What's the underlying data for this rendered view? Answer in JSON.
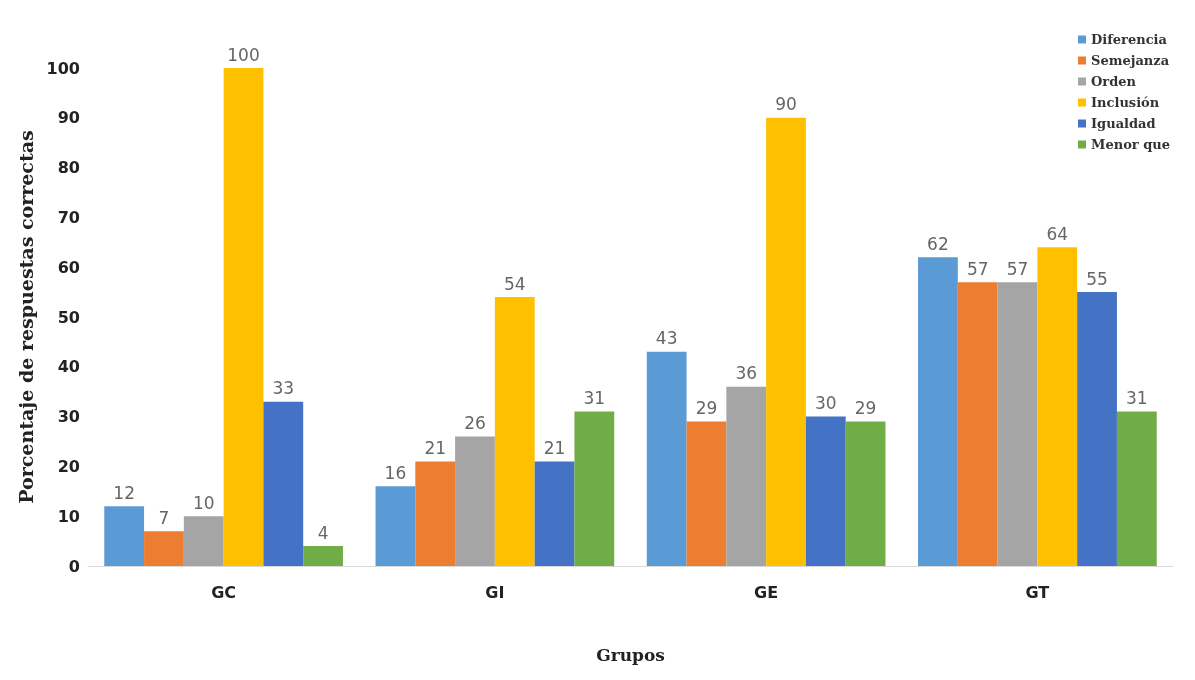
{
  "chart_data": {
    "type": "bar",
    "xlabel": "Grupos",
    "ylabel": "Porcentaje de respuestas correctas",
    "categories": [
      "GC",
      "GI",
      "GE",
      "GT"
    ],
    "series": [
      {
        "name": "Diferencia",
        "color": "#5b9bd5",
        "values": [
          12,
          16,
          43,
          62
        ]
      },
      {
        "name": "Semejanza",
        "color": "#ed7d31",
        "values": [
          7,
          21,
          29,
          57
        ]
      },
      {
        "name": "Orden",
        "color": "#a5a5a5",
        "values": [
          10,
          26,
          36,
          57
        ]
      },
      {
        "name": "Inclusión",
        "color": "#ffc000",
        "values": [
          100,
          54,
          90,
          64
        ]
      },
      {
        "name": "Igualdad",
        "color": "#4472c4",
        "values": [
          33,
          21,
          30,
          55
        ]
      },
      {
        "name": "Menor que",
        "color": "#70ad47",
        "values": [
          4,
          31,
          29,
          31
        ]
      }
    ],
    "ylim": [
      0,
      100
    ],
    "yticks": [
      0,
      10,
      20,
      30,
      40,
      50,
      60,
      70,
      80,
      90,
      100
    ],
    "grid": false,
    "legend": "top right",
    "data_labels": true
  }
}
